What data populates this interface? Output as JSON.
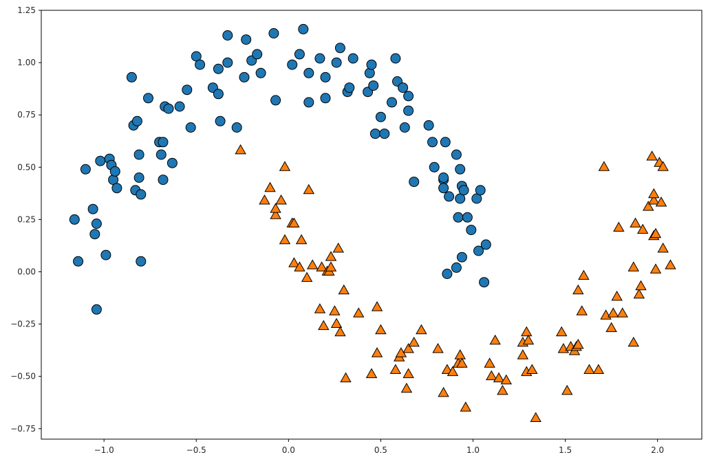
{
  "chart_data": {
    "type": "scatter",
    "xlim": [
      -1.34,
      2.24
    ],
    "ylim": [
      -0.8,
      1.25
    ],
    "grid": false,
    "xticks": [
      -1.0,
      -0.5,
      0.0,
      0.5,
      1.0,
      1.5,
      2.0
    ],
    "xtick_labels": [
      "−1.0",
      "−0.5",
      "0.0",
      "0.5",
      "1.0",
      "1.5",
      "2.0"
    ],
    "yticks": [
      -0.75,
      -0.5,
      -0.25,
      0.0,
      0.25,
      0.5,
      0.75,
      1.0,
      1.25
    ],
    "ytick_labels": [
      "−0.75",
      "−0.50",
      "−0.25",
      "0.00",
      "0.25",
      "0.50",
      "0.75",
      "1.00",
      "1.25"
    ],
    "series": [
      {
        "marker": "circle",
        "color": "#1f77b4",
        "points": [
          [
            -1.16,
            0.25
          ],
          [
            -1.14,
            0.05
          ],
          [
            -1.1,
            0.49
          ],
          [
            -1.06,
            0.3
          ],
          [
            -1.05,
            0.18
          ],
          [
            -1.04,
            0.23
          ],
          [
            -1.04,
            -0.18
          ],
          [
            -1.02,
            0.53
          ],
          [
            -0.99,
            0.08
          ],
          [
            -0.97,
            0.54
          ],
          [
            -0.96,
            0.51
          ],
          [
            -0.95,
            0.44
          ],
          [
            -0.94,
            0.48
          ],
          [
            -0.93,
            0.4
          ],
          [
            -0.85,
            0.93
          ],
          [
            -0.84,
            0.7
          ],
          [
            -0.83,
            0.39
          ],
          [
            -0.82,
            0.72
          ],
          [
            -0.81,
            0.45
          ],
          [
            -0.81,
            0.56
          ],
          [
            -0.8,
            0.37
          ],
          [
            -0.8,
            0.05
          ],
          [
            -0.76,
            0.83
          ],
          [
            -0.7,
            0.62
          ],
          [
            -0.69,
            0.56
          ],
          [
            -0.68,
            0.44
          ],
          [
            -0.68,
            0.62
          ],
          [
            -0.67,
            0.79
          ],
          [
            -0.65,
            0.78
          ],
          [
            -0.63,
            0.52
          ],
          [
            -0.59,
            0.79
          ],
          [
            -0.55,
            0.87
          ],
          [
            -0.53,
            0.69
          ],
          [
            -0.5,
            1.03
          ],
          [
            -0.48,
            0.99
          ],
          [
            -0.41,
            0.88
          ],
          [
            -0.38,
            0.97
          ],
          [
            -0.38,
            0.85
          ],
          [
            -0.37,
            0.72
          ],
          [
            -0.33,
            1.13
          ],
          [
            -0.33,
            1.0
          ],
          [
            -0.28,
            0.69
          ],
          [
            -0.24,
            0.93
          ],
          [
            -0.23,
            1.11
          ],
          [
            -0.2,
            1.01
          ],
          [
            -0.17,
            1.04
          ],
          [
            -0.15,
            0.95
          ],
          [
            -0.08,
            1.14
          ],
          [
            -0.07,
            0.82
          ],
          [
            0.02,
            0.99
          ],
          [
            0.06,
            1.04
          ],
          [
            0.08,
            1.16
          ],
          [
            0.11,
            0.81
          ],
          [
            0.11,
            0.95
          ],
          [
            0.17,
            1.02
          ],
          [
            0.2,
            0.93
          ],
          [
            0.2,
            0.83
          ],
          [
            0.26,
            1.0
          ],
          [
            0.28,
            1.07
          ],
          [
            0.32,
            0.86
          ],
          [
            0.33,
            0.88
          ],
          [
            0.35,
            1.02
          ],
          [
            0.43,
            0.86
          ],
          [
            0.44,
            0.95
          ],
          [
            0.45,
            0.99
          ],
          [
            0.46,
            0.89
          ],
          [
            0.47,
            0.66
          ],
          [
            0.5,
            0.74
          ],
          [
            0.52,
            0.66
          ],
          [
            0.56,
            0.81
          ],
          [
            0.58,
            1.02
          ],
          [
            0.59,
            0.91
          ],
          [
            0.62,
            0.88
          ],
          [
            0.63,
            0.69
          ],
          [
            0.65,
            0.84
          ],
          [
            0.65,
            0.77
          ],
          [
            0.68,
            0.43
          ],
          [
            0.76,
            0.7
          ],
          [
            0.78,
            0.62
          ],
          [
            0.79,
            0.5
          ],
          [
            0.84,
            0.44
          ],
          [
            0.84,
            0.4
          ],
          [
            0.84,
            0.45
          ],
          [
            0.85,
            0.62
          ],
          [
            0.86,
            -0.01
          ],
          [
            0.87,
            0.36
          ],
          [
            0.91,
            0.56
          ],
          [
            0.91,
            0.02
          ],
          [
            0.92,
            0.26
          ],
          [
            0.93,
            0.49
          ],
          [
            0.93,
            0.35
          ],
          [
            0.94,
            0.07
          ],
          [
            0.94,
            0.41
          ],
          [
            0.95,
            0.39
          ],
          [
            0.97,
            0.26
          ],
          [
            0.99,
            0.2
          ],
          [
            1.02,
            0.35
          ],
          [
            1.03,
            0.1
          ],
          [
            1.04,
            0.39
          ],
          [
            1.06,
            -0.05
          ],
          [
            1.07,
            0.13
          ]
        ]
      },
      {
        "marker": "triangle",
        "color": "#ff7f0e",
        "points": [
          [
            -0.26,
            0.58
          ],
          [
            -0.13,
            0.34
          ],
          [
            -0.1,
            0.4
          ],
          [
            -0.07,
            0.27
          ],
          [
            -0.07,
            0.3
          ],
          [
            -0.04,
            0.34
          ],
          [
            -0.02,
            0.5
          ],
          [
            -0.02,
            0.15
          ],
          [
            0.02,
            0.23
          ],
          [
            0.03,
            0.23
          ],
          [
            0.03,
            0.04
          ],
          [
            0.06,
            0.02
          ],
          [
            0.07,
            0.15
          ],
          [
            0.1,
            -0.03
          ],
          [
            0.11,
            0.39
          ],
          [
            0.13,
            0.03
          ],
          [
            0.17,
            -0.18
          ],
          [
            0.18,
            0.02
          ],
          [
            0.19,
            -0.26
          ],
          [
            0.21,
            0.0
          ],
          [
            0.22,
            0.0
          ],
          [
            0.23,
            0.02
          ],
          [
            0.23,
            0.07
          ],
          [
            0.25,
            -0.19
          ],
          [
            0.26,
            -0.25
          ],
          [
            0.27,
            0.11
          ],
          [
            0.28,
            -0.29
          ],
          [
            0.3,
            -0.09
          ],
          [
            0.31,
            -0.51
          ],
          [
            0.38,
            -0.2
          ],
          [
            0.45,
            -0.49
          ],
          [
            0.48,
            -0.39
          ],
          [
            0.48,
            -0.17
          ],
          [
            0.5,
            -0.28
          ],
          [
            0.58,
            -0.47
          ],
          [
            0.6,
            -0.41
          ],
          [
            0.61,
            -0.39
          ],
          [
            0.64,
            -0.56
          ],
          [
            0.65,
            -0.37
          ],
          [
            0.65,
            -0.49
          ],
          [
            0.68,
            -0.34
          ],
          [
            0.72,
            -0.28
          ],
          [
            0.81,
            -0.37
          ],
          [
            0.84,
            -0.58
          ],
          [
            0.86,
            -0.47
          ],
          [
            0.89,
            -0.48
          ],
          [
            0.92,
            -0.44
          ],
          [
            0.93,
            -0.4
          ],
          [
            0.94,
            -0.44
          ],
          [
            0.96,
            -0.65
          ],
          [
            1.09,
            -0.44
          ],
          [
            1.1,
            -0.5
          ],
          [
            1.12,
            -0.33
          ],
          [
            1.14,
            -0.51
          ],
          [
            1.16,
            -0.57
          ],
          [
            1.18,
            -0.52
          ],
          [
            1.27,
            -0.4
          ],
          [
            1.27,
            -0.34
          ],
          [
            1.29,
            -0.48
          ],
          [
            1.29,
            -0.29
          ],
          [
            1.3,
            -0.33
          ],
          [
            1.32,
            -0.47
          ],
          [
            1.34,
            -0.7
          ],
          [
            1.48,
            -0.29
          ],
          [
            1.49,
            -0.37
          ],
          [
            1.51,
            -0.57
          ],
          [
            1.53,
            -0.36
          ],
          [
            1.55,
            -0.38
          ],
          [
            1.56,
            -0.36
          ],
          [
            1.57,
            -0.35
          ],
          [
            1.57,
            -0.09
          ],
          [
            1.59,
            -0.19
          ],
          [
            1.6,
            -0.02
          ],
          [
            1.63,
            -0.47
          ],
          [
            1.68,
            -0.47
          ],
          [
            1.71,
            0.5
          ],
          [
            1.72,
            -0.21
          ],
          [
            1.75,
            -0.27
          ],
          [
            1.76,
            -0.2
          ],
          [
            1.78,
            -0.12
          ],
          [
            1.79,
            0.21
          ],
          [
            1.81,
            -0.2
          ],
          [
            1.87,
            0.02
          ],
          [
            1.87,
            -0.34
          ],
          [
            1.88,
            0.23
          ],
          [
            1.9,
            -0.11
          ],
          [
            1.91,
            -0.07
          ],
          [
            1.92,
            0.2
          ],
          [
            1.95,
            0.31
          ],
          [
            1.97,
            0.55
          ],
          [
            1.98,
            0.17
          ],
          [
            1.98,
            0.34
          ],
          [
            1.98,
            0.37
          ],
          [
            1.99,
            0.01
          ],
          [
            1.99,
            0.18
          ],
          [
            2.01,
            0.52
          ],
          [
            2.02,
            0.33
          ],
          [
            2.03,
            0.5
          ],
          [
            2.03,
            0.11
          ],
          [
            2.07,
            0.03
          ]
        ]
      }
    ]
  }
}
